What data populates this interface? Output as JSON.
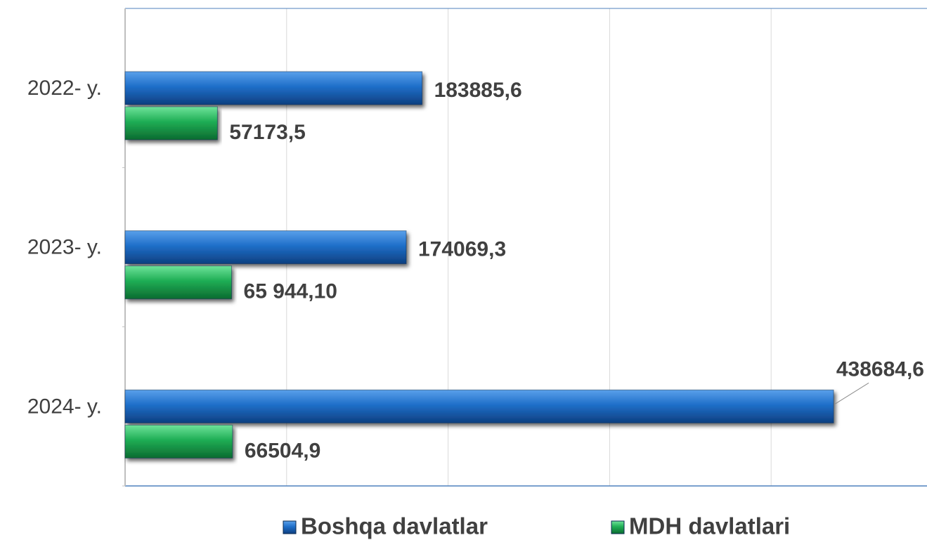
{
  "chart_data": {
    "type": "bar",
    "orientation": "horizontal",
    "categories": [
      "2022- y.",
      "2023- y.",
      "2024- y."
    ],
    "series": [
      {
        "name": "Boshqa davlatlar",
        "color": "#1f6fc9",
        "values": [
          183885.6,
          174069.3,
          438684.6
        ],
        "value_labels": [
          "183885,6",
          "174069,3",
          "438684,6"
        ]
      },
      {
        "name": "MDH davlatlari",
        "color": "#1fae55",
        "values": [
          57173.5,
          65944.1,
          66504.9
        ],
        "value_labels": [
          "57173,5",
          "65 944,10",
          "66504,9"
        ]
      }
    ],
    "xlim": [
      0,
      500000
    ],
    "xticks": [
      0,
      100000,
      200000,
      300000,
      400000,
      500000
    ],
    "grid": true,
    "legend": "bottom"
  }
}
